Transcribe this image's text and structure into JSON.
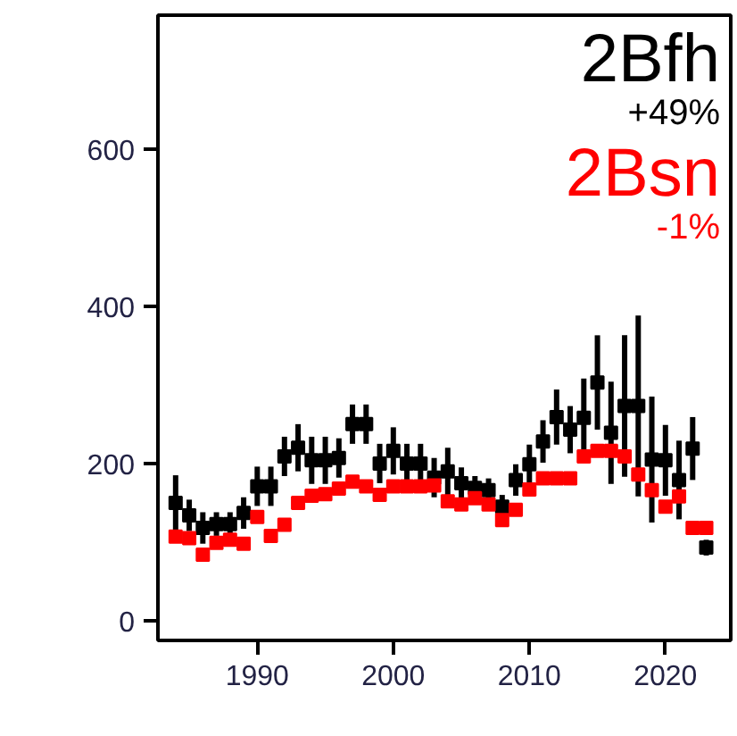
{
  "chart_data": {
    "type": "scatter",
    "x": [
      1984,
      1985,
      1986,
      1987,
      1988,
      1989,
      1990,
      1991,
      1992,
      1993,
      1994,
      1995,
      1996,
      1997,
      1998,
      1999,
      2000,
      2001,
      2002,
      2003,
      2004,
      2005,
      2006,
      2007,
      2008,
      2009,
      2010,
      2011,
      2012,
      2013,
      2014,
      2015,
      2016,
      2017,
      2018,
      2019,
      2020,
      2021,
      2022,
      2023
    ],
    "series": [
      {
        "name": "2Bfh",
        "color": "#000000",
        "values": [
          150,
          134,
          118,
          123,
          123,
          137,
          171,
          171,
          209,
          220,
          204,
          204,
          207,
          250,
          250,
          200,
          216,
          200,
          200,
          182,
          190,
          175,
          169,
          166,
          145,
          179,
          199,
          228,
          259,
          243,
          258,
          303,
          239,
          273,
          273,
          205,
          204,
          179,
          219,
          93
        ],
        "errors": [
          35,
          20,
          20,
          15,
          15,
          20,
          25,
          25,
          25,
          30,
          30,
          30,
          25,
          25,
          25,
          25,
          30,
          25,
          25,
          25,
          30,
          20,
          15,
          15,
          15,
          20,
          25,
          27,
          35,
          30,
          50,
          60,
          65,
          90,
          115,
          80,
          45,
          50,
          40,
          10
        ]
      },
      {
        "name": "2Bsn",
        "color": "#ff0000",
        "values": [
          107,
          105,
          84,
          99,
          103,
          98,
          132,
          108,
          122,
          150,
          159,
          161,
          168,
          177,
          171,
          160,
          171,
          171,
          171,
          172,
          152,
          148,
          156,
          148,
          128,
          141,
          167,
          181,
          181,
          181,
          209,
          216,
          216,
          209,
          186,
          166,
          145,
          158,
          118,
          118
        ]
      }
    ],
    "annotations": [
      "+49%",
      "-1%"
    ],
    "xlim": [
      1982.7,
      2024.8
    ],
    "ylim": [
      -25,
      770
    ],
    "xticks": [
      1990,
      2000,
      2010,
      2020
    ],
    "yticks": [
      0,
      200,
      400,
      600
    ],
    "marker": "square",
    "grid": false
  }
}
